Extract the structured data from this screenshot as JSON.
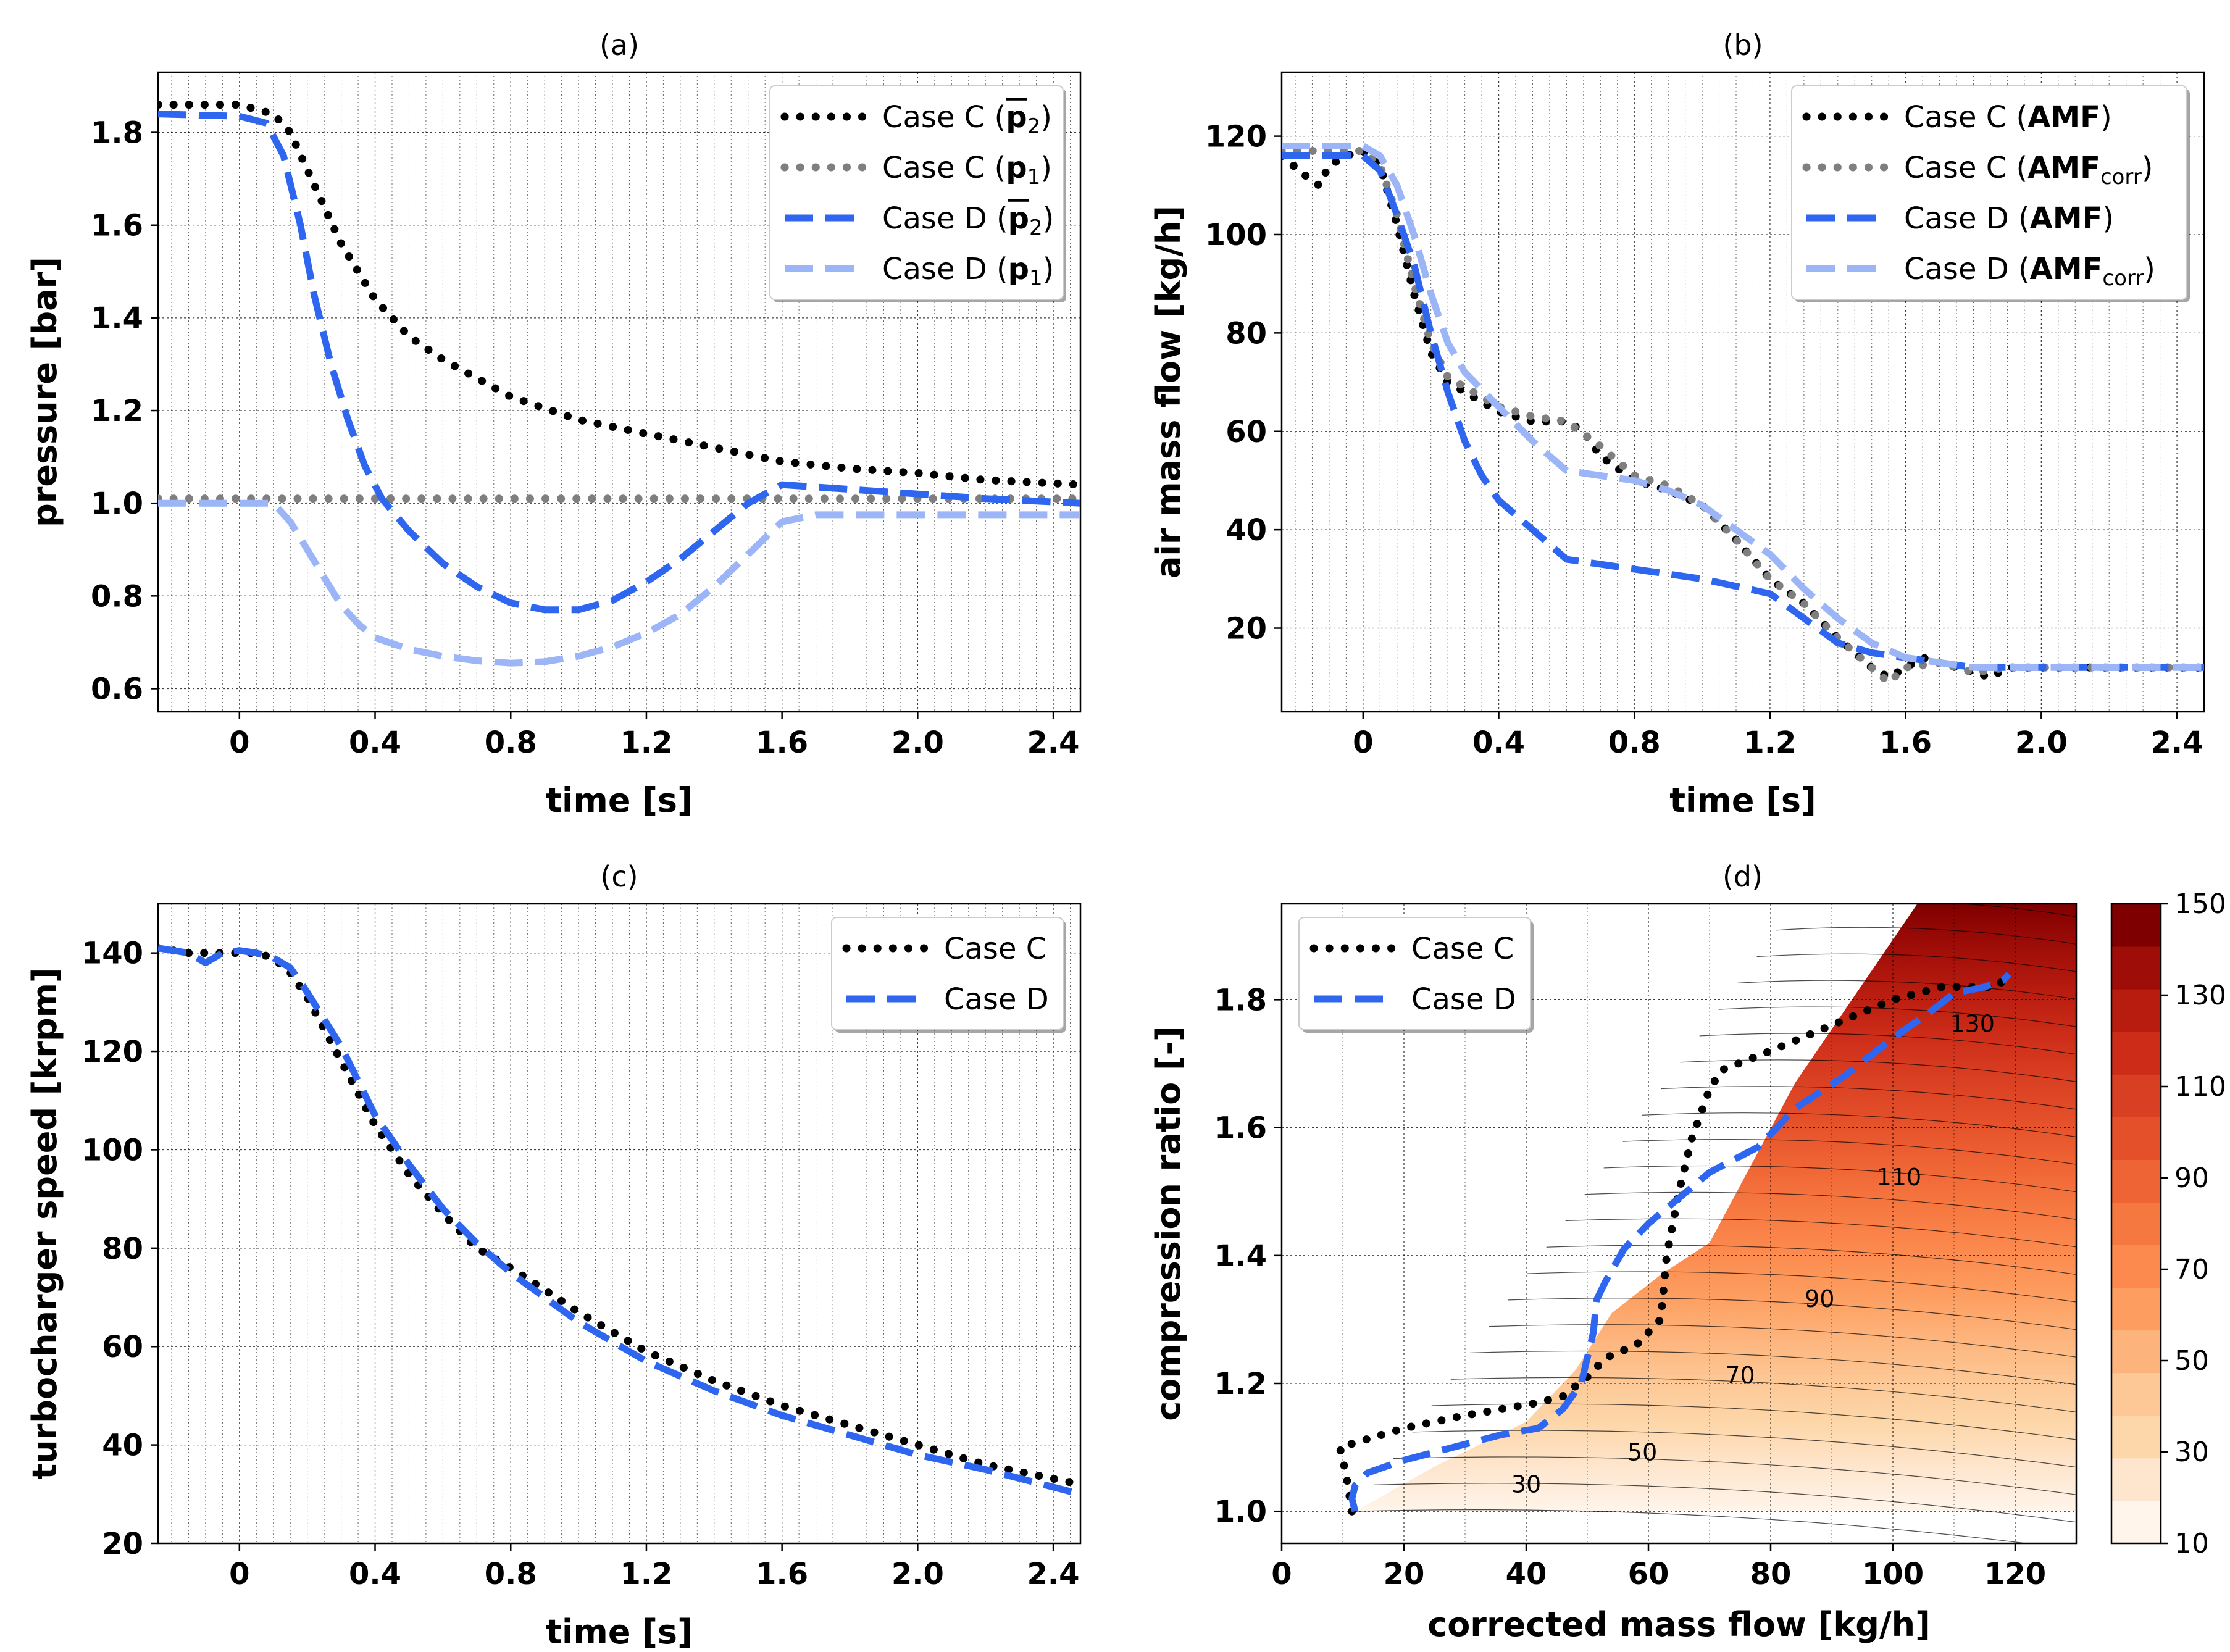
{
  "colors": {
    "caseC": "#000000",
    "caseC_light": "#7f7f7f",
    "caseD": "#2f66f0",
    "caseD_light": "#9cb5f7"
  },
  "chart_data": [
    {
      "id": "a",
      "type": "line",
      "title": "(a)",
      "xlabel": "time [s]",
      "ylabel": "pressure [bar]",
      "xlim": [
        -0.24,
        2.48
      ],
      "ylim": [
        0.55,
        1.93
      ],
      "xticks": [
        0,
        0.4,
        0.8,
        1.2,
        1.6,
        2.0,
        2.4
      ],
      "xtick_labels": [
        "0",
        "0.4",
        "0.8",
        "1.2",
        "1.6",
        "2.0",
        "2.4"
      ],
      "yticks": [
        0.6,
        0.8,
        1.0,
        1.2,
        1.4,
        1.6,
        1.8
      ],
      "ytick_labels": [
        "0.6",
        "0.8",
        "1.0",
        "1.2",
        "1.4",
        "1.6",
        "1.8"
      ],
      "legend": "top-right",
      "series": [
        {
          "name": "Case C",
          "sym": "p2",
          "style": "dotted",
          "color": "caseC",
          "x": [
            -0.24,
            0,
            0.1,
            0.15,
            0.2,
            0.25,
            0.3,
            0.4,
            0.5,
            0.6,
            0.7,
            0.8,
            1.0,
            1.2,
            1.4,
            1.6,
            1.8,
            2.0,
            2.2,
            2.48
          ],
          "y": [
            1.86,
            1.86,
            1.84,
            1.8,
            1.72,
            1.64,
            1.56,
            1.44,
            1.36,
            1.31,
            1.27,
            1.23,
            1.18,
            1.15,
            1.12,
            1.09,
            1.075,
            1.065,
            1.05,
            1.04
          ]
        },
        {
          "name": "Case C",
          "sym": "p1",
          "style": "dotted",
          "color": "caseC_light",
          "x": [
            -0.24,
            2.48
          ],
          "y": [
            1.01,
            1.01
          ]
        },
        {
          "name": "Case D",
          "sym": "p2",
          "style": "dashed",
          "color": "caseD",
          "x": [
            -0.24,
            0,
            0.08,
            0.13,
            0.18,
            0.22,
            0.27,
            0.32,
            0.37,
            0.42,
            0.5,
            0.6,
            0.7,
            0.8,
            0.9,
            1.0,
            1.1,
            1.2,
            1.3,
            1.4,
            1.5,
            1.6,
            1.8,
            2.0,
            2.2,
            2.48
          ],
          "y": [
            1.84,
            1.835,
            1.82,
            1.75,
            1.6,
            1.45,
            1.3,
            1.18,
            1.08,
            1.01,
            0.94,
            0.87,
            0.82,
            0.785,
            0.77,
            0.77,
            0.79,
            0.83,
            0.88,
            0.94,
            1.0,
            1.04,
            1.03,
            1.02,
            1.01,
            1.0
          ]
        },
        {
          "name": "Case D",
          "sym": "p1",
          "style": "dashed",
          "color": "caseD_light",
          "x": [
            -0.24,
            0.1,
            0.15,
            0.2,
            0.25,
            0.3,
            0.35,
            0.4,
            0.5,
            0.6,
            0.7,
            0.8,
            0.9,
            1.0,
            1.1,
            1.2,
            1.3,
            1.4,
            1.5,
            1.6,
            1.7,
            2.0,
            2.48
          ],
          "y": [
            1.0,
            1.0,
            0.96,
            0.9,
            0.84,
            0.78,
            0.74,
            0.71,
            0.685,
            0.67,
            0.66,
            0.655,
            0.658,
            0.67,
            0.69,
            0.72,
            0.76,
            0.82,
            0.89,
            0.96,
            0.975,
            0.975,
            0.975
          ]
        }
      ]
    },
    {
      "id": "b",
      "type": "line",
      "title": "(b)",
      "xlabel": "time [s]",
      "ylabel": "air mass flow [kg/h]",
      "xlim": [
        -0.24,
        2.48
      ],
      "ylim": [
        3,
        133
      ],
      "xticks": [
        0,
        0.4,
        0.8,
        1.2,
        1.6,
        2.0,
        2.4
      ],
      "xtick_labels": [
        "0",
        "0.4",
        "0.8",
        "1.2",
        "1.6",
        "2.0",
        "2.4"
      ],
      "yticks": [
        20,
        40,
        60,
        80,
        100,
        120
      ],
      "ytick_labels": [
        "20",
        "40",
        "60",
        "80",
        "100",
        "120"
      ],
      "legend": "top-right",
      "series": [
        {
          "name": "Case C",
          "sym": "AMF",
          "style": "dotted",
          "color": "caseC",
          "x": [
            -0.24,
            -0.17,
            -0.13,
            -0.1,
            -0.05,
            0,
            0.05,
            0.1,
            0.15,
            0.2,
            0.25,
            0.3,
            0.4,
            0.5,
            0.6,
            0.65,
            0.7,
            0.8,
            0.9,
            1.0,
            1.1,
            1.2,
            1.3,
            1.4,
            1.5,
            1.55,
            1.6,
            1.65,
            1.7,
            1.8,
            1.85,
            1.9,
            2.0,
            2.48
          ],
          "y": [
            116,
            112,
            110,
            114,
            116,
            117,
            114,
            102,
            88,
            76,
            70,
            68,
            64,
            62,
            62,
            60,
            55,
            50,
            48,
            45,
            38,
            30,
            25,
            18,
            12,
            10,
            12,
            14,
            13,
            11,
            10,
            12,
            12,
            12
          ]
        },
        {
          "name": "Case C",
          "sym": "AMF",
          "sub": "corr",
          "style": "dotted",
          "color": "caseC_light",
          "x": [
            -0.24,
            -0.1,
            0,
            0.05,
            0.1,
            0.15,
            0.2,
            0.25,
            0.3,
            0.4,
            0.5,
            0.6,
            0.7,
            0.8,
            0.9,
            1.0,
            1.1,
            1.2,
            1.3,
            1.4,
            1.5,
            1.55,
            1.6,
            1.7,
            1.8,
            1.9,
            2.0,
            2.48
          ],
          "y": [
            117,
            117,
            117,
            114,
            104,
            90,
            78,
            71,
            69,
            65,
            63,
            62,
            57,
            51,
            49,
            45,
            38,
            30,
            25,
            18,
            12,
            9,
            12,
            13,
            11,
            12,
            12,
            12
          ]
        },
        {
          "name": "Case D",
          "sym": "AMF",
          "style": "dashed",
          "color": "caseD",
          "x": [
            -0.24,
            0,
            0.05,
            0.1,
            0.15,
            0.2,
            0.25,
            0.3,
            0.35,
            0.4,
            0.5,
            0.6,
            0.8,
            1.0,
            1.2,
            1.3,
            1.4,
            1.5,
            1.6,
            1.8,
            2.0,
            2.48
          ],
          "y": [
            116,
            116,
            113,
            104,
            94,
            80,
            68,
            58,
            51,
            46,
            40,
            34,
            32,
            30,
            27,
            22,
            17,
            15,
            14,
            12,
            12,
            12
          ]
        },
        {
          "name": "Case D",
          "sym": "AMF",
          "sub": "corr",
          "style": "dashed",
          "color": "caseD_light",
          "x": [
            -0.24,
            0,
            0.05,
            0.1,
            0.15,
            0.2,
            0.25,
            0.3,
            0.4,
            0.5,
            0.6,
            0.7,
            0.8,
            0.9,
            1.0,
            1.1,
            1.2,
            1.3,
            1.4,
            1.5,
            1.6,
            1.7,
            1.8,
            2.0,
            2.48
          ],
          "y": [
            118,
            118,
            116,
            110,
            100,
            88,
            78,
            72,
            65,
            58,
            52,
            51,
            50,
            48,
            45,
            40,
            35,
            28,
            22,
            17,
            14,
            13,
            12,
            12,
            12
          ]
        }
      ]
    },
    {
      "id": "c",
      "type": "line",
      "title": "(c)",
      "xlabel": "time [s]",
      "ylabel": "turbocharger speed [krpm]",
      "xlim": [
        -0.24,
        2.48
      ],
      "ylim": [
        20,
        150
      ],
      "xticks": [
        0,
        0.4,
        0.8,
        1.2,
        1.6,
        2.0,
        2.4
      ],
      "xtick_labels": [
        "0",
        "0.4",
        "0.8",
        "1.2",
        "1.6",
        "2.0",
        "2.4"
      ],
      "yticks": [
        20,
        40,
        60,
        80,
        100,
        120,
        140
      ],
      "ytick_labels": [
        "20",
        "40",
        "60",
        "80",
        "100",
        "120",
        "140"
      ],
      "legend": "top-right",
      "series": [
        {
          "name": "Case C",
          "style": "dotted",
          "color": "caseC",
          "x": [
            -0.24,
            -0.15,
            -0.1,
            -0.05,
            0,
            0.05,
            0.1,
            0.15,
            0.2,
            0.3,
            0.4,
            0.5,
            0.6,
            0.7,
            0.8,
            1.0,
            1.2,
            1.4,
            1.6,
            1.8,
            2.0,
            2.2,
            2.48
          ],
          "y": [
            141,
            140,
            140,
            140,
            140,
            140,
            139,
            136,
            131,
            118,
            105,
            95,
            87,
            80,
            76,
            67,
            59,
            53,
            48,
            44,
            40,
            36,
            32
          ]
        },
        {
          "name": "Case D",
          "style": "dashed",
          "color": "caseD",
          "x": [
            -0.24,
            -0.15,
            -0.1,
            -0.05,
            0,
            0.05,
            0.1,
            0.15,
            0.2,
            0.3,
            0.4,
            0.5,
            0.6,
            0.7,
            0.8,
            1.0,
            1.2,
            1.4,
            1.6,
            1.8,
            2.0,
            2.2,
            2.48
          ],
          "y": [
            141,
            140,
            138,
            140,
            140.5,
            140,
            139,
            137,
            132,
            121,
            107,
            97,
            88,
            81,
            75,
            65,
            57,
            51,
            46,
            42,
            38,
            35,
            30
          ]
        }
      ]
    },
    {
      "id": "d",
      "type": "line",
      "subtype": "contour-map",
      "title": "(d)",
      "xlabel": "corrected mass flow [kg/h]",
      "ylabel": "compression ratio [-]",
      "xlim": [
        0,
        130
      ],
      "ylim": [
        0.95,
        1.95
      ],
      "xticks": [
        0,
        20,
        40,
        60,
        80,
        100,
        120
      ],
      "xtick_labels": [
        "0",
        "20",
        "40",
        "60",
        "80",
        "100",
        "120"
      ],
      "yticks": [
        1.0,
        1.2,
        1.4,
        1.6,
        1.8
      ],
      "ytick_labels": [
        "1.0",
        "1.2",
        "1.4",
        "1.6",
        "1.8"
      ],
      "legend": "top-left",
      "colorbar": {
        "levels": [
          10,
          20,
          30,
          40,
          50,
          60,
          70,
          80,
          90,
          100,
          110,
          120,
          130,
          140,
          150
        ],
        "tick_labels": [
          "10",
          "30",
          "50",
          "70",
          "90",
          "110",
          "130",
          "150"
        ],
        "colors": [
          "#fff5eb",
          "#fee6ce",
          "#fdd7aa",
          "#fdc896",
          "#fdb47c",
          "#fd9d5f",
          "#fc8a4f",
          "#f67841",
          "#ef6434",
          "#e4502a",
          "#d93f22",
          "#cc2c18",
          "#b71c0f",
          "#9f0d08",
          "#7f0000"
        ]
      },
      "contour_labels": [
        {
          "text": "30",
          "x": 40,
          "y": 1.04
        },
        {
          "text": "50",
          "x": 59,
          "y": 1.09
        },
        {
          "text": "70",
          "x": 75,
          "y": 1.21
        },
        {
          "text": "90",
          "x": 88,
          "y": 1.33
        },
        {
          "text": "110",
          "x": 101,
          "y": 1.52
        },
        {
          "text": "130",
          "x": 113,
          "y": 1.76
        }
      ],
      "map_region": {
        "x": [
          12,
          25,
          40,
          48,
          54,
          62,
          70,
          84,
          104,
          130,
          130
        ],
        "y": [
          1.0,
          1.07,
          1.14,
          1.22,
          1.31,
          1.37,
          1.42,
          1.67,
          1.95,
          1.95,
          1.0
        ]
      },
      "series": [
        {
          "name": "Case C",
          "style": "dotted",
          "color": "caseC",
          "x": [
            11.5,
            11,
            10.5,
            9.5,
            13,
            20,
            30,
            42,
            46,
            50,
            53,
            58,
            62,
            62.5,
            63,
            64,
            65,
            67,
            70,
            72,
            80,
            90,
            100,
            108,
            113,
            117,
            118,
            117
          ],
          "y": [
            1.0,
            1.03,
            1.06,
            1.1,
            1.11,
            1.13,
            1.15,
            1.17,
            1.18,
            1.21,
            1.24,
            1.26,
            1.3,
            1.35,
            1.4,
            1.45,
            1.5,
            1.58,
            1.66,
            1.69,
            1.72,
            1.76,
            1.8,
            1.82,
            1.82,
            1.82,
            1.83,
            1.82
          ]
        },
        {
          "name": "Case D",
          "style": "dashed",
          "color": "caseD",
          "x": [
            12,
            11.5,
            12,
            14,
            20,
            28,
            36,
            42,
            46,
            49,
            50,
            51,
            51.5,
            53,
            56,
            60,
            65,
            70,
            78,
            84,
            92,
            100,
            106,
            110,
            115,
            118,
            119
          ],
          "y": [
            1.0,
            1.02,
            1.04,
            1.06,
            1.08,
            1.1,
            1.12,
            1.13,
            1.16,
            1.2,
            1.24,
            1.28,
            1.33,
            1.36,
            1.41,
            1.45,
            1.49,
            1.53,
            1.57,
            1.63,
            1.68,
            1.74,
            1.78,
            1.81,
            1.82,
            1.83,
            1.84
          ]
        }
      ]
    }
  ]
}
